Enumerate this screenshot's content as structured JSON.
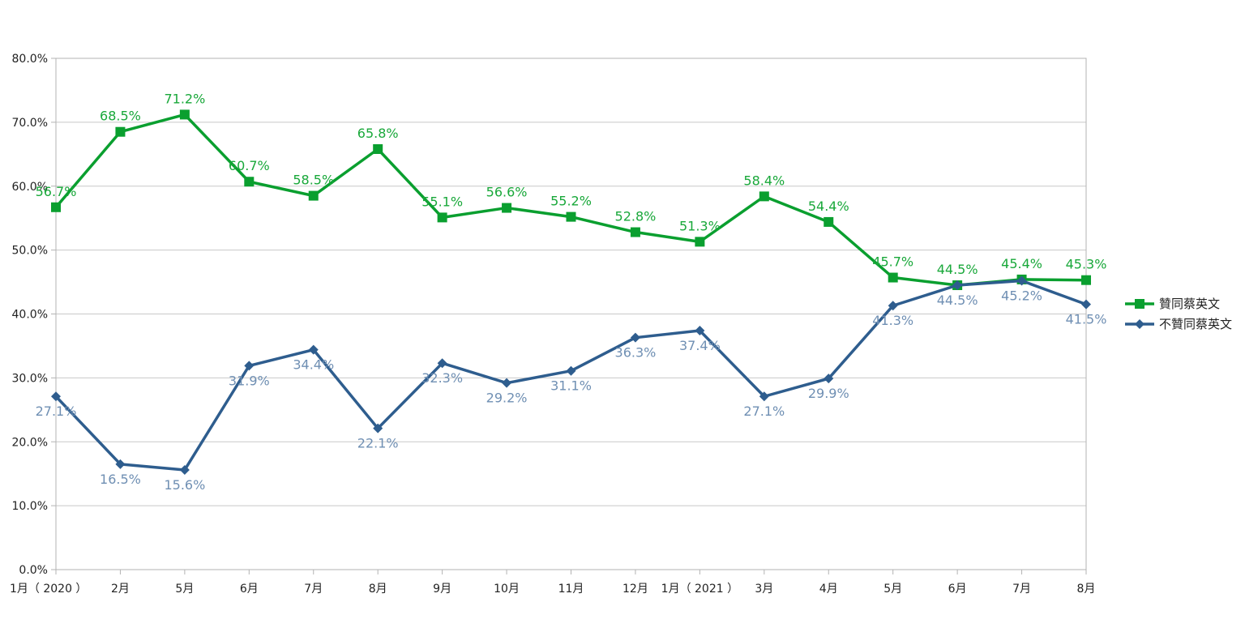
{
  "chart_data": {
    "type": "line",
    "categories": [
      "1月（ 2020 ）",
      "2月",
      "5月",
      "6月",
      "7月",
      "8月",
      "9月",
      "10月",
      "11月",
      "12月",
      "1月（ 2021 ）",
      "3月",
      "4月",
      "5月",
      "6月",
      "7月",
      "8月"
    ],
    "y_ticks": [
      "0.0%",
      "10.0%",
      "20.0%",
      "30.0%",
      "40.0%",
      "50.0%",
      "60.0%",
      "70.0%",
      "80.0%"
    ],
    "ylim": [
      0,
      80
    ],
    "grid": true,
    "legend_position": "right",
    "series": [
      {
        "name": "贊同蔡英文",
        "color": "#0a9f2f",
        "label_color": "#19a83a",
        "marker": "square",
        "values": [
          56.7,
          68.5,
          71.2,
          60.7,
          58.5,
          65.8,
          55.1,
          56.6,
          55.2,
          52.8,
          51.3,
          58.4,
          54.4,
          45.7,
          44.5,
          45.4,
          45.3
        ],
        "labels": [
          "56.7%",
          "68.5%",
          "71.2%",
          "60.7%",
          "58.5%",
          "65.8%",
          "55.1%",
          "56.6%",
          "55.2%",
          "52.8%",
          "51.3%",
          "58.4%",
          "54.4%",
          "45.7%",
          "44.5%",
          "45.4%",
          "45.3%"
        ]
      },
      {
        "name": "不贊同蔡英文",
        "color": "#2e5d8e",
        "label_color": "#6f8fb3",
        "marker": "diamond",
        "values": [
          27.1,
          16.5,
          15.6,
          31.9,
          34.4,
          22.1,
          32.3,
          29.2,
          31.1,
          36.3,
          37.4,
          27.1,
          29.9,
          41.3,
          44.5,
          45.2,
          41.5
        ],
        "labels": [
          "27.1%",
          "16.5%",
          "15.6%",
          "31.9%",
          "34.4%",
          "22.1%",
          "32.3%",
          "29.2%",
          "31.1%",
          "36.3%",
          "37.4%",
          "27.1%",
          "29.9%",
          "41.3%",
          "44.5%",
          "45.2%",
          "41.5%"
        ]
      }
    ]
  }
}
